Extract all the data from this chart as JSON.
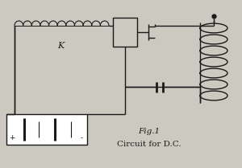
{
  "bg_color": "#ccc9c0",
  "line_color": "#1a1a1a",
  "title": "Fig.1",
  "subtitle": "Circuit for D.C.",
  "label_K": "K",
  "title_fontsize": 7.5,
  "subtitle_fontsize": 7.5,
  "label_fontsize": 8,
  "figsize": [
    3.0,
    2.09
  ],
  "dpi": 100,
  "lw": 1.0
}
